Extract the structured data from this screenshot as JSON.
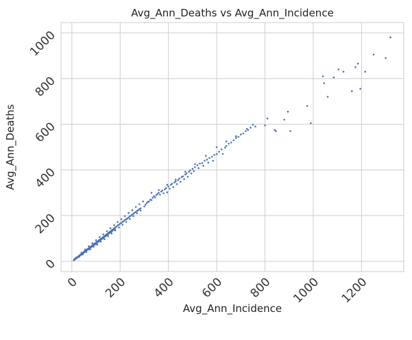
{
  "chart_data": {
    "type": "scatter",
    "title": "Avg_Ann_Deaths vs Avg_Ann_Incidence",
    "xlabel": "Avg_Ann_Incidence",
    "ylabel": "Avg_Ann_Deaths",
    "xlim": [
      -45,
      1375
    ],
    "ylim": [
      -45,
      1045
    ],
    "xticks": [
      0,
      200,
      400,
      600,
      800,
      1000,
      1200
    ],
    "yticks": [
      0,
      200,
      400,
      600,
      800,
      1000
    ],
    "tick_rotation": 45,
    "grid": true,
    "marker_color": "#4c72b0",
    "points": [
      [
        8,
        5
      ],
      [
        10,
        9
      ],
      [
        12,
        7
      ],
      [
        14,
        11
      ],
      [
        15,
        13
      ],
      [
        17,
        12
      ],
      [
        18,
        16
      ],
      [
        20,
        15
      ],
      [
        22,
        18
      ],
      [
        24,
        17
      ],
      [
        26,
        21
      ],
      [
        27,
        19
      ],
      [
        29,
        24
      ],
      [
        31,
        22
      ],
      [
        33,
        27
      ],
      [
        34,
        26
      ],
      [
        36,
        30
      ],
      [
        38,
        28
      ],
      [
        40,
        33
      ],
      [
        41,
        31
      ],
      [
        43,
        36
      ],
      [
        45,
        35
      ],
      [
        47,
        38
      ],
      [
        48,
        36
      ],
      [
        50,
        42
      ],
      [
        52,
        40
      ],
      [
        54,
        45
      ],
      [
        55,
        43
      ],
      [
        57,
        47
      ],
      [
        59,
        46
      ],
      [
        61,
        50
      ],
      [
        62,
        49
      ],
      [
        64,
        53
      ],
      [
        66,
        51
      ],
      [
        68,
        56
      ],
      [
        70,
        54
      ],
      [
        72,
        59
      ],
      [
        74,
        57
      ],
      [
        76,
        62
      ],
      [
        78,
        60
      ],
      [
        80,
        66
      ],
      [
        82,
        64
      ],
      [
        84,
        69
      ],
      [
        86,
        67
      ],
      [
        88,
        72
      ],
      [
        90,
        70
      ],
      [
        92,
        75
      ],
      [
        94,
        73
      ],
      [
        96,
        79
      ],
      [
        98,
        76
      ],
      [
        100,
        82
      ],
      [
        102,
        80
      ],
      [
        104,
        85
      ],
      [
        106,
        83
      ],
      [
        108,
        88
      ],
      [
        110,
        86
      ],
      [
        112,
        92
      ],
      [
        114,
        89
      ],
      [
        116,
        95
      ],
      [
        118,
        93
      ],
      [
        120,
        98
      ],
      [
        122,
        96
      ],
      [
        124,
        101
      ],
      [
        126,
        99
      ],
      [
        128,
        105
      ],
      [
        130,
        102
      ],
      [
        132,
        108
      ],
      [
        134,
        106
      ],
      [
        136,
        111
      ],
      [
        138,
        109
      ],
      [
        140,
        115
      ],
      [
        142,
        112
      ],
      [
        144,
        118
      ],
      [
        146,
        116
      ],
      [
        148,
        121
      ],
      [
        150,
        119
      ],
      [
        152,
        125
      ],
      [
        154,
        122
      ],
      [
        156,
        128
      ],
      [
        158,
        126
      ],
      [
        160,
        131
      ],
      [
        162,
        129
      ],
      [
        164,
        135
      ],
      [
        166,
        132
      ],
      [
        168,
        138
      ],
      [
        170,
        136
      ],
      [
        172,
        141
      ],
      [
        174,
        139
      ],
      [
        176,
        145
      ],
      [
        178,
        142
      ],
      [
        180,
        148
      ],
      [
        185,
        152
      ],
      [
        190,
        157
      ],
      [
        195,
        160
      ],
      [
        200,
        165
      ],
      [
        205,
        168
      ],
      [
        210,
        173
      ],
      [
        215,
        176
      ],
      [
        220,
        181
      ],
      [
        225,
        184
      ],
      [
        230,
        188
      ],
      [
        235,
        192
      ],
      [
        240,
        197
      ],
      [
        245,
        200
      ],
      [
        250,
        205
      ],
      [
        255,
        208
      ],
      [
        260,
        213
      ],
      [
        265,
        216
      ],
      [
        270,
        221
      ],
      [
        275,
        224
      ],
      [
        280,
        229
      ],
      [
        285,
        232
      ],
      [
        30,
        20
      ],
      [
        45,
        30
      ],
      [
        60,
        41
      ],
      [
        75,
        52
      ],
      [
        90,
        64
      ],
      [
        105,
        73
      ],
      [
        120,
        86
      ],
      [
        135,
        97
      ],
      [
        150,
        110
      ],
      [
        165,
        122
      ],
      [
        180,
        135
      ],
      [
        195,
        148
      ],
      [
        210,
        160
      ],
      [
        225,
        172
      ],
      [
        240,
        185
      ],
      [
        255,
        198
      ],
      [
        270,
        210
      ],
      [
        285,
        222
      ],
      [
        40,
        38
      ],
      [
        55,
        52
      ],
      [
        70,
        66
      ],
      [
        85,
        79
      ],
      [
        100,
        92
      ],
      [
        115,
        106
      ],
      [
        130,
        118
      ],
      [
        145,
        132
      ],
      [
        160,
        145
      ],
      [
        175,
        158
      ],
      [
        190,
        172
      ],
      [
        205,
        184
      ],
      [
        220,
        198
      ],
      [
        235,
        212
      ],
      [
        250,
        224
      ],
      [
        265,
        238
      ],
      [
        280,
        250
      ],
      [
        295,
        262
      ],
      [
        300,
        240
      ],
      [
        305,
        248
      ],
      [
        310,
        255
      ],
      [
        315,
        260
      ],
      [
        320,
        262
      ],
      [
        325,
        270
      ],
      [
        330,
        268
      ],
      [
        335,
        278
      ],
      [
        340,
        285
      ],
      [
        345,
        280
      ],
      [
        350,
        290
      ],
      [
        355,
        295
      ],
      [
        360,
        300
      ],
      [
        365,
        292
      ],
      [
        370,
        305
      ],
      [
        375,
        310
      ],
      [
        380,
        298
      ],
      [
        385,
        315
      ],
      [
        390,
        320
      ],
      [
        395,
        302
      ],
      [
        400,
        328
      ],
      [
        405,
        318
      ],
      [
        410,
        335
      ],
      [
        415,
        340
      ],
      [
        420,
        325
      ],
      [
        425,
        345
      ],
      [
        430,
        350
      ],
      [
        435,
        338
      ],
      [
        440,
        355
      ],
      [
        445,
        362
      ],
      [
        450,
        348
      ],
      [
        455,
        368
      ],
      [
        460,
        372
      ],
      [
        465,
        360
      ],
      [
        470,
        380
      ],
      [
        475,
        385
      ],
      [
        480,
        370
      ],
      [
        485,
        392
      ],
      [
        490,
        398
      ],
      [
        495,
        385
      ],
      [
        500,
        405
      ],
      [
        505,
        395
      ],
      [
        510,
        412
      ],
      [
        520,
        420
      ],
      [
        525,
        408
      ],
      [
        530,
        428
      ],
      [
        540,
        430
      ],
      [
        545,
        418
      ],
      [
        550,
        440
      ],
      [
        560,
        445
      ],
      [
        565,
        432
      ],
      [
        570,
        452
      ],
      [
        580,
        458
      ],
      [
        585,
        440
      ],
      [
        590,
        466
      ],
      [
        600,
        470
      ],
      [
        610,
        480
      ],
      [
        620,
        490
      ],
      [
        625,
        470
      ],
      [
        635,
        498
      ],
      [
        640,
        505
      ],
      [
        650,
        515
      ],
      [
        660,
        520
      ],
      [
        670,
        530
      ],
      [
        680,
        540
      ],
      [
        690,
        545
      ],
      [
        700,
        555
      ],
      [
        710,
        560
      ],
      [
        720,
        570
      ],
      [
        730,
        575
      ],
      [
        740,
        585
      ],
      [
        750,
        598
      ],
      [
        330,
        300
      ],
      [
        360,
        312
      ],
      [
        395,
        335
      ],
      [
        430,
        358
      ],
      [
        470,
        392
      ],
      [
        510,
        425
      ],
      [
        555,
        462
      ],
      [
        600,
        500
      ],
      [
        640,
        525
      ],
      [
        680,
        548
      ],
      [
        725,
        580
      ],
      [
        760,
        590
      ],
      [
        800,
        595
      ],
      [
        810,
        625
      ],
      [
        840,
        575
      ],
      [
        845,
        570
      ],
      [
        880,
        620
      ],
      [
        895,
        655
      ],
      [
        905,
        570
      ],
      [
        975,
        680
      ],
      [
        990,
        605
      ],
      [
        1040,
        810
      ],
      [
        1045,
        780
      ],
      [
        1060,
        720
      ],
      [
        1085,
        805
      ],
      [
        1105,
        840
      ],
      [
        1125,
        830
      ],
      [
        1160,
        745
      ],
      [
        1175,
        850
      ],
      [
        1185,
        865
      ],
      [
        1195,
        755
      ],
      [
        1215,
        830
      ],
      [
        1250,
        905
      ],
      [
        1300,
        890
      ],
      [
        1320,
        980
      ]
    ]
  }
}
